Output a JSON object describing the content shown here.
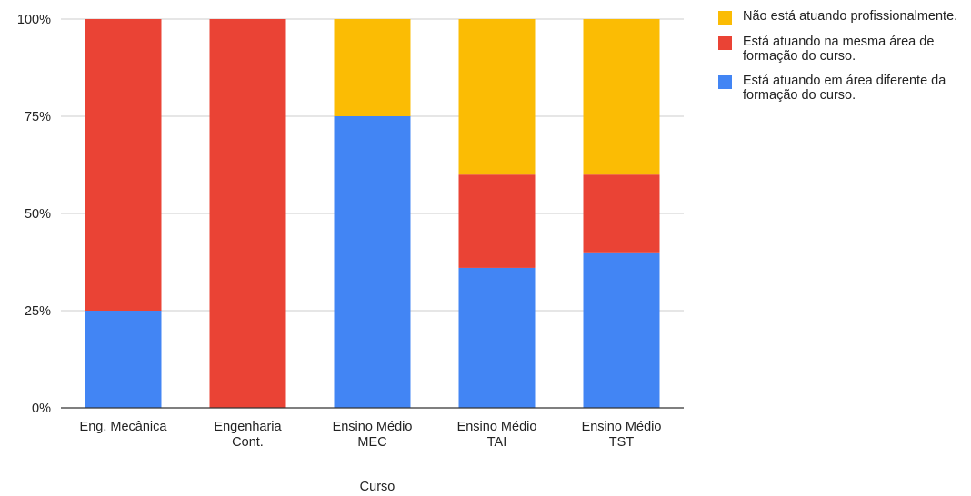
{
  "chart_data": {
    "type": "bar",
    "stacked": true,
    "percent_stacked": true,
    "categories": [
      [
        "Eng. Mecânica"
      ],
      [
        "Engenharia",
        "Cont."
      ],
      [
        "Ensino Médio",
        "MEC"
      ],
      [
        "Ensino Médio",
        "TAI"
      ],
      [
        "Ensino Médio",
        "TST"
      ]
    ],
    "series": [
      {
        "name": "Está atuando em área diferente da formação do curso.",
        "color": "#4285f4",
        "values": [
          25,
          0,
          75,
          36,
          40
        ]
      },
      {
        "name": "Está atuando na mesma área de formação do curso.",
        "color": "#ea4335",
        "values": [
          75,
          100,
          0,
          24,
          20
        ]
      },
      {
        "name": "Não está atuando profissionalmente.",
        "color": "#fbbc04",
        "values": [
          0,
          0,
          25,
          40,
          40
        ]
      }
    ],
    "xlabel": "Curso",
    "ylabel": "",
    "ylim": [
      0,
      100
    ],
    "yticks": [
      "0%",
      "25%",
      "50%",
      "75%",
      "100%"
    ],
    "grid": true,
    "legend_position": "right"
  },
  "legend": [
    {
      "label": "Não está atuando profissionalmente.",
      "color": "#fbbc04"
    },
    {
      "label": "Está atuando na mesma área de formação do curso.",
      "color": "#ea4335"
    },
    {
      "label": "Está atuando em área diferente da formação do curso.",
      "color": "#4285f4"
    }
  ]
}
